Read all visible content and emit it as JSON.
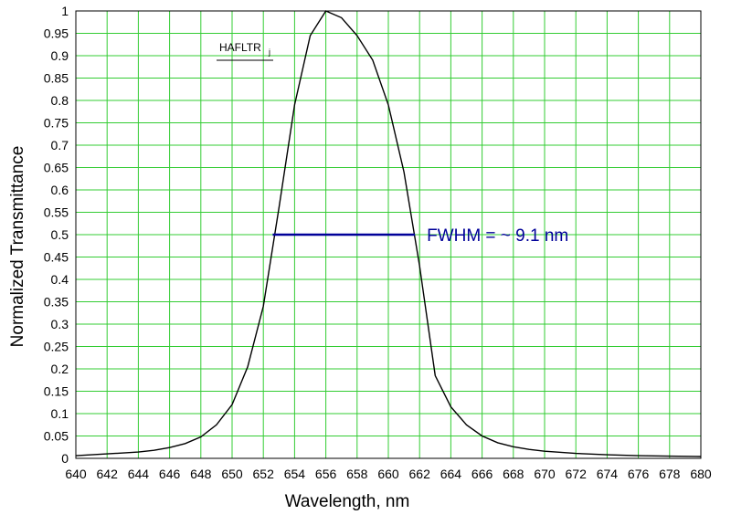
{
  "chart_data": {
    "type": "line",
    "title": "",
    "xlabel": "Wavelength, nm",
    "ylabel": "Normalized Transmittance",
    "xlim": [
      640,
      680
    ],
    "ylim": [
      0,
      1
    ],
    "x_ticks": [
      640,
      642,
      644,
      646,
      648,
      650,
      652,
      654,
      656,
      658,
      660,
      662,
      664,
      666,
      668,
      670,
      672,
      674,
      676,
      678,
      680
    ],
    "y_ticks": [
      0,
      0.05,
      0.1,
      0.15,
      0.2,
      0.25,
      0.3,
      0.35,
      0.4,
      0.45,
      0.5,
      0.55,
      0.6,
      0.65,
      0.7,
      0.75,
      0.8,
      0.85,
      0.9,
      0.95,
      1
    ],
    "grid": true,
    "grid_color": "#33cc33",
    "legend": {
      "label": "HAFLTR",
      "subscript": "j",
      "placement": "top-left"
    },
    "series": [
      {
        "name": "HAFLTR",
        "color": "#000000",
        "x": [
          640,
          642,
          644,
          645,
          646,
          647,
          648,
          649,
          650,
          651,
          652,
          653,
          654,
          655,
          656,
          657,
          658,
          659,
          660,
          661,
          662,
          663,
          664,
          665,
          666,
          667,
          668,
          669,
          670,
          672,
          674,
          676,
          678,
          680
        ],
        "y": [
          0.006,
          0.01,
          0.014,
          0.018,
          0.024,
          0.033,
          0.048,
          0.075,
          0.12,
          0.205,
          0.34,
          0.56,
          0.79,
          0.945,
          1.0,
          0.985,
          0.945,
          0.89,
          0.79,
          0.64,
          0.43,
          0.185,
          0.115,
          0.075,
          0.05,
          0.035,
          0.026,
          0.02,
          0.016,
          0.011,
          0.008,
          0.006,
          0.005,
          0.004
        ]
      }
    ],
    "annotations": [
      {
        "type": "hline",
        "x_start": 652.6,
        "x_end": 661.7,
        "y": 0.5,
        "color": "#000099",
        "text": "FWHM = ~ 9.1 nm",
        "text_color": "#000099"
      }
    ]
  }
}
